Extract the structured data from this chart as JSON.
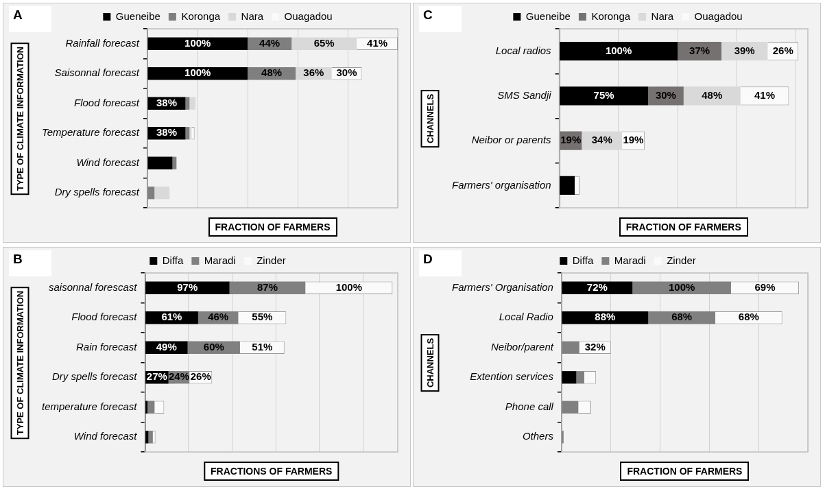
{
  "chart_data": [
    {
      "type": "bar",
      "title": "A",
      "orientation": "horizontal",
      "stacked": true,
      "xlabel": "FRACTION OF FARMERS",
      "ylabel": "TYPE OF CLIMATE INFORMATION",
      "legend": "top",
      "grid": "x",
      "tick_labels": "y",
      "xlim": [
        0,
        250
      ],
      "xticks": [
        {
          "value": 0,
          "label": null
        },
        {
          "value": 50,
          "label": null
        },
        {
          "value": 100,
          "label": null
        },
        {
          "value": 150,
          "label": null
        },
        {
          "value": 200,
          "label": null
        },
        {
          "value": 250,
          "label": null
        }
      ],
      "categories": [
        "Rainfall forecast",
        "Saisonnal forecast",
        "Flood forecast",
        "Temperature forecast",
        "Wind forecast",
        "Dry spells forecast"
      ],
      "series": [
        {
          "name": "Gueneibe",
          "color": "#000000",
          "values": [
            100,
            100,
            38,
            38,
            25,
            0
          ],
          "value_labels": [
            "100%",
            "100%",
            "38%",
            "38%",
            null,
            null
          ]
        },
        {
          "name": "Koronga",
          "color": "#7f7f7f",
          "values": [
            44,
            48,
            4,
            4,
            4,
            7
          ],
          "value_labels": [
            "44%",
            "48%",
            null,
            null,
            null,
            null
          ]
        },
        {
          "name": "Nara",
          "color": "#d9d9d9",
          "values": [
            65,
            36,
            6,
            2,
            0,
            15
          ],
          "value_labels": [
            "65%",
            "36%",
            null,
            null,
            null,
            null
          ]
        },
        {
          "name": "Ouagadou",
          "color": "#fafafa",
          "values": [
            41,
            30,
            0,
            3,
            0,
            0
          ],
          "value_labels": [
            "41%",
            "30%",
            null,
            null,
            null,
            null
          ]
        }
      ]
    },
    {
      "type": "bar",
      "title": "C",
      "orientation": "horizontal",
      "stacked": true,
      "xlabel": "FRACTION OF FARMERS",
      "ylabel": "CHANNELS",
      "legend": "top",
      "grid": "x",
      "tick_labels": "y",
      "xlim": [
        0,
        210
      ],
      "xticks": [
        {
          "value": 0,
          "label": null
        },
        {
          "value": 50,
          "label": null
        },
        {
          "value": 100,
          "label": null
        },
        {
          "value": 150,
          "label": null
        },
        {
          "value": 200,
          "label": null
        }
      ],
      "categories": [
        "Local radios",
        "SMS Sandji",
        "Neibor or parents",
        "Farmers' organisation"
      ],
      "series": [
        {
          "name": "Gueneibe",
          "color": "#000000",
          "values": [
            100,
            75,
            0,
            13
          ],
          "value_labels": [
            "100%",
            "75%",
            null,
            null
          ]
        },
        {
          "name": "Koronga",
          "color": "#767171",
          "values": [
            37,
            30,
            19,
            0
          ],
          "value_labels": [
            "37%",
            "30%",
            "19%",
            null
          ]
        },
        {
          "name": "Nara",
          "color": "#d9d9d9",
          "values": [
            39,
            48,
            34,
            0
          ],
          "value_labels": [
            "39%",
            "48%",
            "34%",
            null
          ]
        },
        {
          "name": "Ouagadou",
          "color": "#fafafa",
          "values": [
            26,
            41,
            19,
            4
          ],
          "value_labels": [
            "26%",
            "41%",
            "19%",
            null
          ]
        }
      ]
    },
    {
      "type": "bar",
      "title": "B",
      "orientation": "horizontal",
      "stacked": true,
      "xlabel": "FRACTIONS OF FARMERS",
      "ylabel": "TYPE OF CLIMATE INFORMATION",
      "legend": "top",
      "grid": "x",
      "tick_labels": "y",
      "xlim": [
        0,
        290
      ],
      "xticks": [
        {
          "value": 0,
          "label": null
        },
        {
          "value": 50,
          "label": null
        },
        {
          "value": 100,
          "label": null
        },
        {
          "value": 150,
          "label": null
        },
        {
          "value": 200,
          "label": null
        },
        {
          "value": 250,
          "label": null
        }
      ],
      "categories": [
        "saisonnal forescast",
        "Flood forecast",
        "Rain forecast",
        "Dry spells forecast",
        "temperature forecast",
        "Wind forecast"
      ],
      "series": [
        {
          "name": "Diffa",
          "color": "#000000",
          "values": [
            97,
            61,
            49,
            27,
            3,
            4
          ],
          "value_labels": [
            "97%",
            "61%",
            "49%",
            "27%",
            null,
            null
          ]
        },
        {
          "name": "Maradi",
          "color": "#808080",
          "values": [
            87,
            46,
            60,
            24,
            8,
            5
          ],
          "value_labels": [
            "87%",
            "46%",
            "60%",
            "24%",
            null,
            null
          ]
        },
        {
          "name": "Zinder",
          "color": "#fafafa",
          "values": [
            100,
            55,
            51,
            26,
            11,
            3
          ],
          "value_labels": [
            "100%",
            "55%",
            "51%",
            "26%",
            null,
            null
          ]
        }
      ]
    },
    {
      "type": "bar",
      "title": "D",
      "orientation": "horizontal",
      "stacked": true,
      "xlabel": "FRACTION OF FARMERS",
      "ylabel": "CHANNELS",
      "legend": "top",
      "grid": "x",
      "tick_labels": "y",
      "xlim": [
        0,
        250
      ],
      "xticks": [
        {
          "value": 0,
          "label": null
        },
        {
          "value": 50,
          "label": null
        },
        {
          "value": 100,
          "label": null
        },
        {
          "value": 150,
          "label": null
        },
        {
          "value": 200,
          "label": null
        },
        {
          "value": 250,
          "label": null
        }
      ],
      "categories": [
        "Farmers' Organisation",
        "Local Radio",
        "Neibor/parent",
        "Extention services",
        "Phone call",
        "Others"
      ],
      "series": [
        {
          "name": "Diffa",
          "color": "#000000",
          "values": [
            72,
            88,
            0,
            15,
            0,
            0
          ],
          "value_labels": [
            "72%",
            "88%",
            null,
            null,
            null,
            null
          ]
        },
        {
          "name": "Maradi",
          "color": "#808080",
          "values": [
            100,
            68,
            18,
            8,
            17,
            2
          ],
          "value_labels": [
            "100%",
            "68%",
            null,
            null,
            null,
            null
          ]
        },
        {
          "name": "Zinder",
          "color": "#fafafa",
          "values": [
            69,
            68,
            32,
            12,
            13,
            0
          ],
          "value_labels": [
            "69%",
            "68%",
            "32%",
            null,
            null,
            null
          ]
        }
      ]
    }
  ]
}
